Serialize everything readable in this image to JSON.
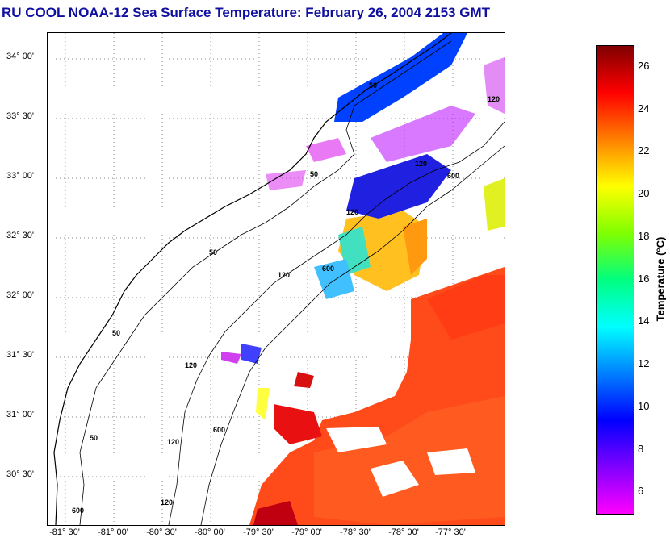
{
  "title": "RU COOL  NOAA-12  Sea Surface Temperature:  February 26, 2004 2153 GMT",
  "lat_ticks": [
    "34° 00'",
    "33° 30'",
    "33° 00'",
    "32° 30'",
    "32° 00'",
    "31° 30'",
    "31° 00'",
    "30° 30'"
  ],
  "lon_ticks": [
    "-81° 30'",
    "-81° 00'",
    "-80° 30'",
    "-80° 00'",
    "-79° 30'",
    "-79° 00'",
    "-78° 30'",
    "-78° 00'",
    "-77° 30'"
  ],
  "isobath_labels": [
    "50",
    "50",
    "50",
    "50",
    "50",
    "120",
    "120",
    "120",
    "120",
    "120",
    "120",
    "600",
    "600",
    "600",
    "120",
    "600"
  ],
  "colorbar": {
    "label": "Temperature (°C)",
    "ticks": [
      "26",
      "24",
      "22",
      "20",
      "18",
      "16",
      "14",
      "12",
      "10",
      "8",
      "6"
    ],
    "range": [
      5,
      27
    ],
    "colors": [
      "#ff00ff",
      "#8000ff",
      "#0000ff",
      "#0080ff",
      "#00ffff",
      "#00ff80",
      "#80ff00",
      "#ffff00",
      "#ff8000",
      "#ff0000",
      "#800000"
    ]
  }
}
